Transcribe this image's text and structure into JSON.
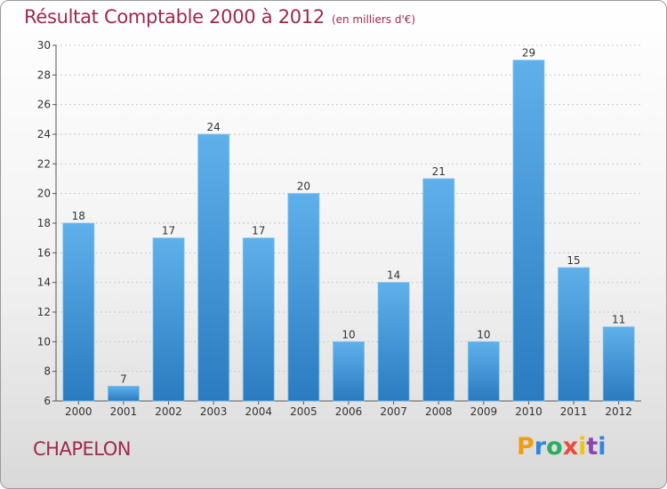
{
  "header": {
    "title": "Résultat Comptable 2000 à 2012",
    "subtitle": "(en milliers d'€)"
  },
  "footer": {
    "commune": "CHAPELON",
    "logo_letters": [
      "P",
      "r",
      "o",
      "x",
      "i",
      "t",
      "i"
    ],
    "logo_colors": [
      "#f39c12",
      "#2e86de",
      "#27ae60",
      "#e74c3c",
      "#f1c40f",
      "#8e44ad",
      "#2e86de"
    ]
  },
  "colors": {
    "bar_top": "#5fb0ea",
    "bar_bottom": "#2a7bc0",
    "title": "#a0284a"
  },
  "chart_data": {
    "type": "bar",
    "title": "Résultat Comptable 2000 à 2012",
    "xlabel": "",
    "ylabel": "",
    "categories": [
      "2000",
      "2001",
      "2002",
      "2003",
      "2004",
      "2005",
      "2006",
      "2007",
      "2008",
      "2009",
      "2010",
      "2011",
      "2012"
    ],
    "values": [
      18,
      7,
      17,
      24,
      17,
      20,
      10,
      14,
      21,
      10,
      29,
      15,
      11
    ],
    "ylim": [
      6,
      30
    ],
    "yticks": [
      6,
      8,
      10,
      12,
      14,
      16,
      18,
      20,
      22,
      24,
      26,
      28,
      30
    ],
    "grid": true
  }
}
